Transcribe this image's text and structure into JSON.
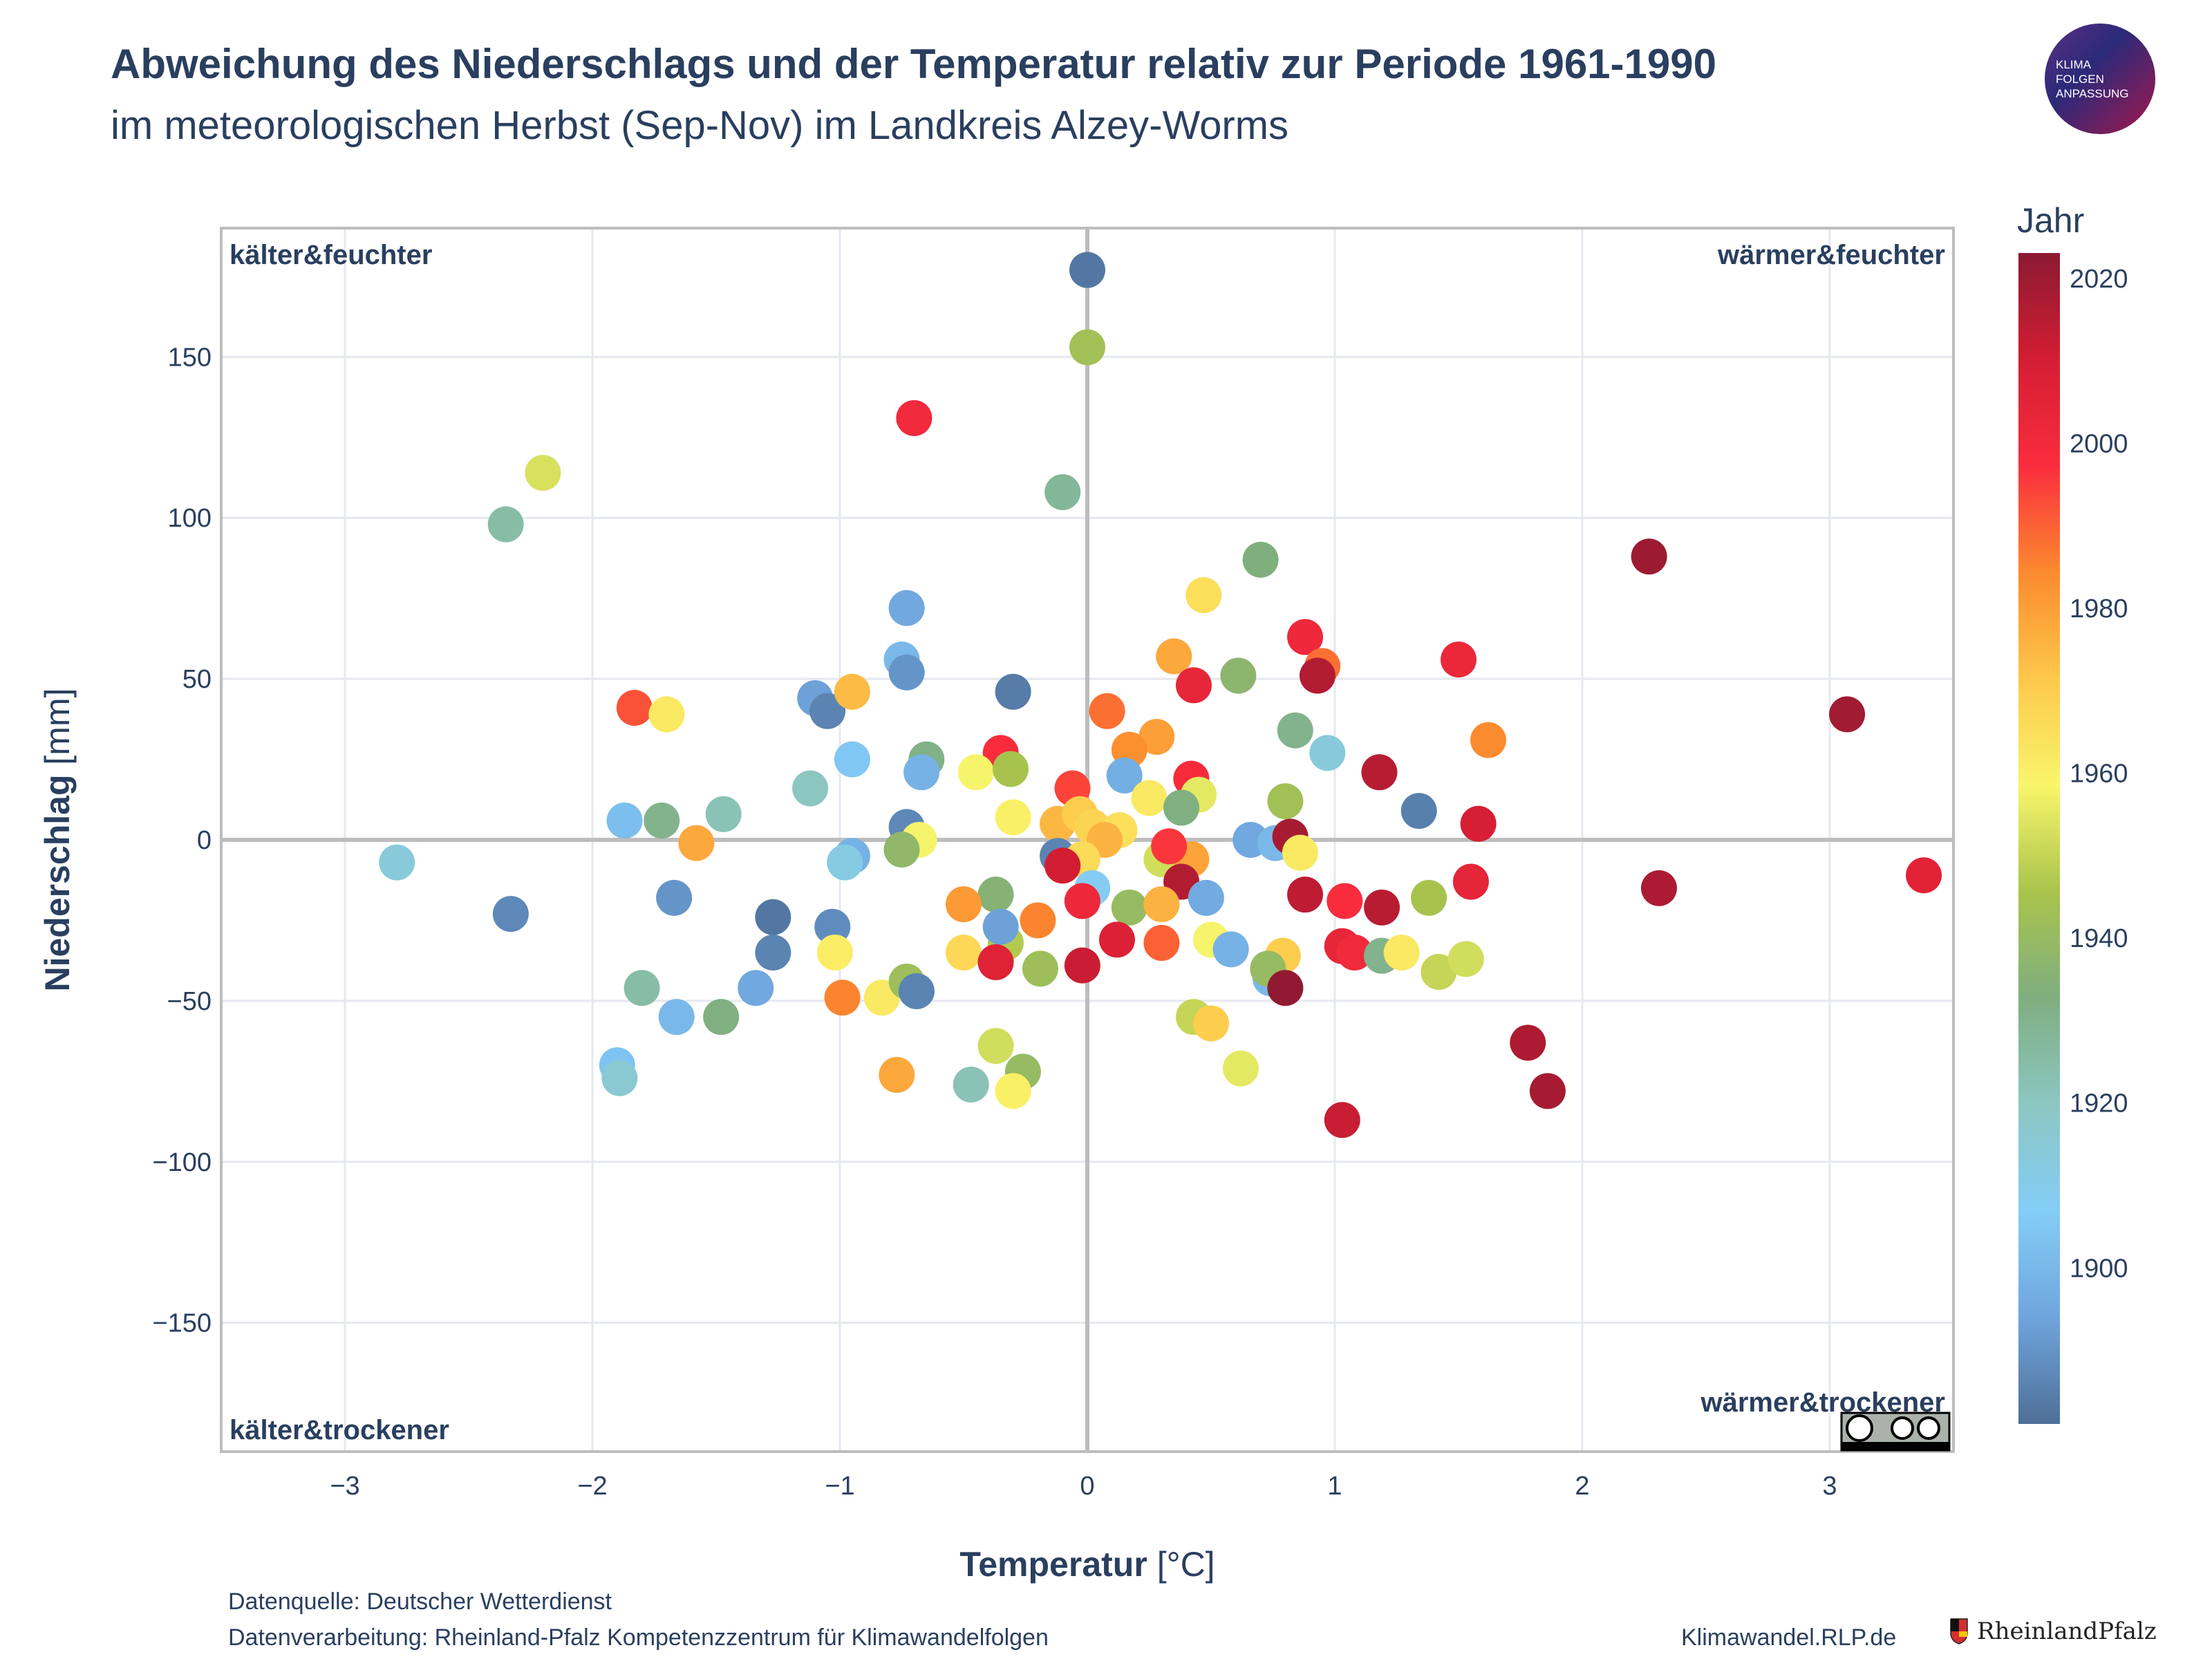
{
  "header": {
    "title": "Abweichung des Niederschlags und der Temperatur relativ zur Periode 1961-1990",
    "subtitle": "im meteorologischen Herbst (Sep-Nov) im Landkreis Alzey-Worms"
  },
  "logo": {
    "lines": [
      "KLIMA",
      "FOLGEN",
      "ANPASSUNG"
    ]
  },
  "footer": {
    "source": "Datenquelle: Deutscher Wetterdienst",
    "processing": "Datenverarbeitung: Rheinland-Pfalz Kompetenzzentrum für Klimawandelfolgen",
    "website": "Klimawandel.RLP.de",
    "state_logo": "RheinlandPfalz"
  },
  "license": {
    "label": "cc BY SA"
  },
  "colors": {
    "text": "#2a3f5f",
    "grid": "#e5e8ef",
    "zeroline": "#bdbdbd",
    "scale": [
      "#4e6f97",
      "#6fa5dd",
      "#84cdf7",
      "#8cc7c2",
      "#7fae7f",
      "#a9c44c",
      "#f9f66b",
      "#fdc84b",
      "#fb8a2e",
      "#fa2d3e",
      "#d31d33",
      "#8b1a32"
    ]
  },
  "chart_data": {
    "type": "scatter",
    "xlabel_bold": "Temperatur",
    "xlabel_unit": " [°C]",
    "ylabel_bold": "Niederschlag",
    "ylabel_unit": " [mm]",
    "xlim": [
      -3.5,
      3.5
    ],
    "ylim": [
      -190,
      190
    ],
    "xticks": [
      -3,
      -2,
      -1,
      0,
      1,
      2,
      3
    ],
    "yticks": [
      -150,
      -100,
      -50,
      0,
      50,
      100,
      150
    ],
    "xtick_labels": [
      "−3",
      "−2",
      "−1",
      "0",
      "1",
      "2",
      "3"
    ],
    "ytick_labels": [
      "−150",
      "−100",
      "−50",
      "0",
      "50",
      "100",
      "150"
    ],
    "quadrant_labels": {
      "top_left": "kälter&feuchter",
      "top_right": "wärmer&feuchter",
      "bottom_left": "kälter&trockener",
      "bottom_right": "wärmer&trockener"
    },
    "colorbar": {
      "title": "Jahr",
      "range": [
        1881,
        2023
      ],
      "ticks": [
        1900,
        1920,
        1940,
        1960,
        1980,
        2000,
        2020
      ],
      "tick_labels": [
        "1900",
        "1920",
        "1940",
        "1960",
        "1980",
        "2000",
        "2020"
      ]
    },
    "points": [
      [
        0.0,
        177,
        1883
      ],
      [
        0.0,
        153,
        1943
      ],
      [
        -0.7,
        131,
        2000
      ],
      [
        -2.2,
        114,
        1953
      ],
      [
        -2.35,
        98,
        1925
      ],
      [
        -0.1,
        108,
        1928
      ],
      [
        2.27,
        88,
        2020
      ],
      [
        0.7,
        87,
        1933
      ],
      [
        -0.73,
        72,
        1895
      ],
      [
        0.47,
        76,
        1965
      ],
      [
        -0.75,
        56,
        1900
      ],
      [
        -0.73,
        52,
        1890
      ],
      [
        0.35,
        57,
        1978
      ],
      [
        0.88,
        63,
        2001
      ],
      [
        0.95,
        54,
        1988
      ],
      [
        0.43,
        48,
        2003
      ],
      [
        0.61,
        51,
        1937
      ],
      [
        1.5,
        56,
        2002
      ],
      [
        0.93,
        51,
        2016
      ],
      [
        -1.1,
        44,
        1893
      ],
      [
        -1.05,
        40,
        1886
      ],
      [
        -0.95,
        46,
        1974
      ],
      [
        -0.3,
        46,
        1884
      ],
      [
        -1.83,
        41,
        1992
      ],
      [
        -1.7,
        39,
        1962
      ],
      [
        0.08,
        40,
        1988
      ],
      [
        0.28,
        32,
        1980
      ],
      [
        0.17,
        28,
        1983
      ],
      [
        0.84,
        34,
        1930
      ],
      [
        0.97,
        27,
        1914
      ],
      [
        1.62,
        31,
        1984
      ],
      [
        -0.35,
        27,
        1998
      ],
      [
        -0.65,
        25,
        1931
      ],
      [
        -0.95,
        25,
        1905
      ],
      [
        -0.67,
        21,
        1898
      ],
      [
        -0.45,
        21,
        1958
      ],
      [
        -0.31,
        22,
        1945
      ],
      [
        0.15,
        20,
        1897
      ],
      [
        1.18,
        21,
        2015
      ],
      [
        -1.12,
        16,
        1920
      ],
      [
        0.42,
        19,
        1999
      ],
      [
        -0.06,
        16,
        1994
      ],
      [
        0.25,
        13,
        1962
      ],
      [
        0.45,
        14,
        1955
      ],
      [
        0.38,
        10,
        1932
      ],
      [
        0.8,
        12,
        1943
      ],
      [
        1.34,
        9,
        1885
      ],
      [
        -1.47,
        8,
        1922
      ],
      [
        -1.87,
        6,
        1902
      ],
      [
        -1.72,
        6,
        1930
      ],
      [
        -0.73,
        4,
        1887
      ],
      [
        -0.3,
        7,
        1960
      ],
      [
        -0.12,
        5,
        1975
      ],
      [
        -0.03,
        8,
        1970
      ],
      [
        0.02,
        4,
        1968
      ],
      [
        0.13,
        3,
        1965
      ],
      [
        0.07,
        0,
        1976
      ],
      [
        0.66,
        0,
        1895
      ],
      [
        0.76,
        -1,
        1900
      ],
      [
        0.82,
        1,
        2018
      ],
      [
        1.58,
        5,
        2009
      ],
      [
        -0.68,
        0,
        1958
      ],
      [
        -1.58,
        -1,
        1978
      ],
      [
        -0.75,
        -3,
        1938
      ],
      [
        -0.95,
        -5,
        1898
      ],
      [
        -0.98,
        -7,
        1912
      ],
      [
        -2.79,
        -7,
        1914
      ],
      [
        -0.12,
        -5,
        1886
      ],
      [
        -0.02,
        -6,
        1966
      ],
      [
        0.3,
        -6,
        1952
      ],
      [
        0.42,
        -6,
        1979
      ],
      [
        0.33,
        -2,
        1996
      ],
      [
        0.86,
        -4,
        1962
      ],
      [
        1.55,
        -13,
        2004
      ],
      [
        3.38,
        -11,
        2005
      ],
      [
        2.31,
        -15,
        2017
      ],
      [
        -0.1,
        -8,
        2010
      ],
      [
        0.38,
        -13,
        2016
      ],
      [
        0.02,
        -15,
        1908
      ],
      [
        -0.02,
        -19,
        2001
      ],
      [
        0.48,
        -18,
        1896
      ],
      [
        0.88,
        -17,
        2014
      ],
      [
        1.04,
        -19,
        1998
      ],
      [
        1.19,
        -21,
        2015
      ],
      [
        1.38,
        -18,
        1945
      ],
      [
        -2.33,
        -23,
        1887
      ],
      [
        -1.67,
        -18,
        1890
      ],
      [
        -1.27,
        -24,
        1883
      ],
      [
        -1.03,
        -27,
        1888
      ],
      [
        -0.37,
        -17,
        1935
      ],
      [
        -0.5,
        -20,
        1981
      ],
      [
        -0.2,
        -25,
        1985
      ],
      [
        0.17,
        -21,
        1940
      ],
      [
        0.3,
        -20,
        1976
      ],
      [
        0.12,
        -31,
        2007
      ],
      [
        0.3,
        -32,
        1990
      ],
      [
        0.5,
        -31,
        1958
      ],
      [
        0.58,
        -34,
        1898
      ],
      [
        0.79,
        -36,
        1970
      ],
      [
        1.03,
        -33,
        2003
      ],
      [
        1.08,
        -35,
        2000
      ],
      [
        1.19,
        -36,
        1930
      ],
      [
        1.27,
        -35,
        1962
      ],
      [
        1.42,
        -41,
        1950
      ],
      [
        1.53,
        -37,
        1952
      ],
      [
        0.74,
        -43,
        1900
      ],
      [
        0.73,
        -40,
        1940
      ],
      [
        -1.02,
        -35,
        1961
      ],
      [
        -1.27,
        -35,
        1886
      ],
      [
        -0.33,
        -32,
        1947
      ],
      [
        -0.35,
        -27,
        1893
      ],
      [
        -0.5,
        -35,
        1967
      ],
      [
        -0.37,
        -38,
        2006
      ],
      [
        -0.19,
        -40,
        1942
      ],
      [
        -0.02,
        -39,
        2012
      ],
      [
        0.8,
        -46,
        2022
      ],
      [
        -1.8,
        -46,
        1925
      ],
      [
        -1.34,
        -46,
        1895
      ],
      [
        -0.99,
        -49,
        1985
      ],
      [
        -0.83,
        -49,
        1962
      ],
      [
        -0.73,
        -44,
        1942
      ],
      [
        -0.69,
        -47,
        1886
      ],
      [
        -1.66,
        -55,
        1900
      ],
      [
        -1.48,
        -55,
        1932
      ],
      [
        0.43,
        -55,
        1950
      ],
      [
        0.5,
        -57,
        1970
      ],
      [
        0.62,
        -71,
        1955
      ],
      [
        -0.37,
        -64,
        1952
      ],
      [
        -0.26,
        -72,
        1940
      ],
      [
        -0.3,
        -78,
        1960
      ],
      [
        -0.47,
        -76,
        1922
      ],
      [
        -0.77,
        -73,
        1978
      ],
      [
        -1.9,
        -70,
        1904
      ],
      [
        -1.89,
        -74,
        1916
      ],
      [
        1.78,
        -63,
        2017
      ],
      [
        1.86,
        -78,
        2018
      ],
      [
        1.03,
        -87,
        2012
      ],
      [
        3.07,
        39,
        2019
      ]
    ]
  }
}
